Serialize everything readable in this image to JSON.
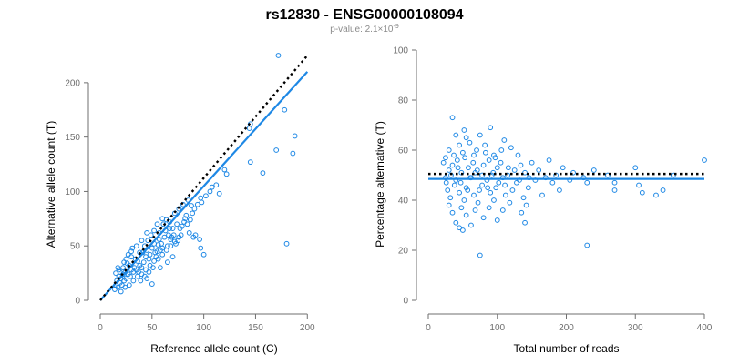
{
  "title": "rs12830 - ENSG00000108094",
  "subtitle": {
    "prefix": "p-value: 2.1×10",
    "exponent": "-9"
  },
  "colors": {
    "points": "#1e88e5",
    "fit_line": "#1e88e5",
    "reference_line": "#000000",
    "axis": "#6f6f6f"
  },
  "chart_data": [
    {
      "type": "scatter",
      "title": "",
      "xlabel": "Reference allele count (C)",
      "ylabel": "Alternative allele count (T)",
      "xlim": [
        0,
        220
      ],
      "ylim": [
        0,
        230
      ],
      "xticks": [
        0,
        50,
        100,
        150,
        200
      ],
      "yticks": [
        0,
        50,
        100,
        150,
        200
      ],
      "grid": false,
      "fit_line": {
        "x": [
          0,
          200
        ],
        "y": [
          0,
          210
        ]
      },
      "reference_line": {
        "x": [
          0,
          200
        ],
        "y": [
          0,
          225
        ],
        "style": "dotted"
      },
      "points": [
        [
          172,
          225
        ],
        [
          178,
          175
        ],
        [
          145,
          162
        ],
        [
          144,
          158
        ],
        [
          188,
          151
        ],
        [
          170,
          138
        ],
        [
          186,
          135
        ],
        [
          157,
          117
        ],
        [
          180,
          52
        ],
        [
          145,
          127
        ],
        [
          120,
          120
        ],
        [
          122,
          116
        ],
        [
          112,
          106
        ],
        [
          115,
          98
        ],
        [
          97,
          94
        ],
        [
          88,
          87
        ],
        [
          100,
          42
        ],
        [
          97,
          48
        ],
        [
          96,
          56
        ],
        [
          82,
          75
        ],
        [
          84,
          70
        ],
        [
          79,
          68
        ],
        [
          86,
          62
        ],
        [
          90,
          58
        ],
        [
          92,
          60
        ],
        [
          78,
          60
        ],
        [
          75,
          55
        ],
        [
          73,
          52
        ],
        [
          70,
          66
        ],
        [
          68,
          56
        ],
        [
          66,
          60
        ],
        [
          65,
          50
        ],
        [
          62,
          58
        ],
        [
          60,
          48
        ],
        [
          58,
          46
        ],
        [
          56,
          51
        ],
        [
          55,
          45
        ],
        [
          54,
          40
        ],
        [
          52,
          52
        ],
        [
          50,
          48
        ],
        [
          48,
          42
        ],
        [
          47,
          38
        ],
        [
          45,
          46
        ],
        [
          44,
          40
        ],
        [
          42,
          35
        ],
        [
          41,
          44
        ],
        [
          40,
          30
        ],
        [
          38,
          32
        ],
        [
          36,
          36
        ],
        [
          35,
          28
        ],
        [
          33,
          30
        ],
        [
          32,
          26
        ],
        [
          30,
          28
        ],
        [
          29,
          22
        ],
        [
          28,
          32
        ],
        [
          27,
          24
        ],
        [
          25,
          20
        ],
        [
          24,
          26
        ],
        [
          23,
          18
        ],
        [
          22,
          24
        ],
        [
          21,
          14
        ],
        [
          20,
          20
        ],
        [
          19,
          16
        ],
        [
          18,
          22
        ],
        [
          17,
          12
        ],
        [
          16,
          18
        ],
        [
          15,
          14
        ],
        [
          14,
          10
        ],
        [
          18,
          28
        ],
        [
          22,
          30
        ],
        [
          26,
          34
        ],
        [
          30,
          40
        ],
        [
          34,
          38
        ],
        [
          38,
          44
        ],
        [
          43,
          50
        ],
        [
          46,
          55
        ],
        [
          49,
          60
        ],
        [
          52,
          64
        ],
        [
          57,
          62
        ],
        [
          61,
          70
        ],
        [
          64,
          74
        ],
        [
          67,
          72
        ],
        [
          72,
          80
        ],
        [
          76,
          84
        ],
        [
          80,
          88
        ],
        [
          85,
          92
        ],
        [
          20,
          8
        ],
        [
          24,
          12
        ],
        [
          28,
          14
        ],
        [
          32,
          18
        ],
        [
          36,
          22
        ],
        [
          40,
          24
        ],
        [
          44,
          28
        ],
        [
          48,
          32
        ],
        [
          52,
          36
        ],
        [
          56,
          38
        ],
        [
          60,
          42
        ],
        [
          64,
          46
        ],
        [
          68,
          50
        ],
        [
          72,
          54
        ],
        [
          76,
          58
        ],
        [
          35,
          50
        ],
        [
          40,
          55
        ],
        [
          45,
          62
        ],
        [
          30,
          45
        ],
        [
          25,
          38
        ],
        [
          55,
          70
        ],
        [
          60,
          75
        ],
        [
          50,
          15
        ],
        [
          45,
          20
        ],
        [
          58,
          30
        ],
        [
          65,
          35
        ],
        [
          70,
          40
        ],
        [
          15,
          25
        ],
        [
          17,
          30
        ],
        [
          19,
          26
        ],
        [
          23,
          35
        ],
        [
          27,
          42
        ],
        [
          31,
          48
        ],
        [
          37,
          26
        ],
        [
          39,
          18
        ],
        [
          43,
          22
        ],
        [
          47,
          26
        ],
        [
          51,
          30
        ],
        [
          53,
          44
        ],
        [
          57,
          56
        ],
        [
          59,
          52
        ],
        [
          63,
          64
        ],
        [
          67,
          66
        ],
        [
          69,
          58
        ],
        [
          71,
          60
        ],
        [
          74,
          70
        ],
        [
          77,
          66
        ],
        [
          81,
          72
        ],
        [
          83,
          78
        ],
        [
          87,
          74
        ],
        [
          89,
          80
        ],
        [
          91,
          84
        ],
        [
          94,
          88
        ],
        [
          98,
          90
        ],
        [
          102,
          96
        ],
        [
          106,
          100
        ],
        [
          108,
          104
        ]
      ]
    },
    {
      "type": "scatter",
      "title": "",
      "xlabel": "Total number of reads",
      "ylabel": "Percentage alternative (T)",
      "xlim": [
        0,
        400
      ],
      "ylim": [
        0,
        100
      ],
      "xticks": [
        0,
        100,
        200,
        300,
        400
      ],
      "yticks": [
        0,
        20,
        40,
        60,
        80,
        100
      ],
      "grid": false,
      "fit_line": {
        "x": [
          0,
          400
        ],
        "y": [
          48.5,
          48.5
        ]
      },
      "reference_line": {
        "x": [
          0,
          400
        ],
        "y": [
          50.5,
          50.5
        ],
        "style": "dotted"
      },
      "points": [
        [
          35,
          73
        ],
        [
          52,
          68
        ],
        [
          90,
          69
        ],
        [
          40,
          66
        ],
        [
          55,
          65
        ],
        [
          75,
          66
        ],
        [
          110,
          64
        ],
        [
          45,
          62
        ],
        [
          60,
          63
        ],
        [
          82,
          62
        ],
        [
          120,
          61
        ],
        [
          30,
          60
        ],
        [
          50,
          59
        ],
        [
          70,
          60
        ],
        [
          95,
          58
        ],
        [
          130,
          58
        ],
        [
          175,
          56
        ],
        [
          25,
          57
        ],
        [
          42,
          56
        ],
        [
          65,
          55
        ],
        [
          88,
          56
        ],
        [
          105,
          55
        ],
        [
          150,
          55
        ],
        [
          35,
          54
        ],
        [
          58,
          53
        ],
        [
          80,
          54
        ],
        [
          100,
          53
        ],
        [
          125,
          52
        ],
        [
          160,
          52
        ],
        [
          195,
          53
        ],
        [
          240,
          52
        ],
        [
          300,
          53
        ],
        [
          30,
          52
        ],
        [
          48,
          51
        ],
        [
          68,
          51
        ],
        [
          92,
          50
        ],
        [
          115,
          50
        ],
        [
          140,
          51
        ],
        [
          185,
          50
        ],
        [
          210,
          51
        ],
        [
          260,
          50
        ],
        [
          355,
          50
        ],
        [
          400,
          56
        ],
        [
          25,
          49
        ],
        [
          40,
          48
        ],
        [
          62,
          49
        ],
        [
          85,
          48
        ],
        [
          108,
          49
        ],
        [
          132,
          48
        ],
        [
          170,
          49
        ],
        [
          205,
          48
        ],
        [
          225,
          49
        ],
        [
          270,
          47
        ],
        [
          305,
          46
        ],
        [
          38,
          46
        ],
        [
          55,
          45
        ],
        [
          78,
          46
        ],
        [
          98,
          45
        ],
        [
          122,
          44
        ],
        [
          145,
          45
        ],
        [
          190,
          44
        ],
        [
          230,
          47
        ],
        [
          28,
          44
        ],
        [
          45,
          43
        ],
        [
          66,
          42
        ],
        [
          90,
          43
        ],
        [
          112,
          42
        ],
        [
          138,
          41
        ],
        [
          165,
          42
        ],
        [
          270,
          44
        ],
        [
          310,
          43
        ],
        [
          330,
          42
        ],
        [
          340,
          44
        ],
        [
          32,
          41
        ],
        [
          52,
          40
        ],
        [
          72,
          39
        ],
        [
          95,
          40
        ],
        [
          118,
          39
        ],
        [
          142,
          38
        ],
        [
          30,
          38
        ],
        [
          48,
          37
        ],
        [
          68,
          36
        ],
        [
          88,
          37
        ],
        [
          108,
          36
        ],
        [
          135,
          35
        ],
        [
          35,
          35
        ],
        [
          55,
          34
        ],
        [
          80,
          33
        ],
        [
          100,
          32
        ],
        [
          140,
          31
        ],
        [
          40,
          31
        ],
        [
          62,
          30
        ],
        [
          45,
          29
        ],
        [
          50,
          28
        ],
        [
          75,
          18
        ],
        [
          230,
          22
        ],
        [
          22,
          55
        ],
        [
          26,
          47
        ],
        [
          33,
          50
        ],
        [
          37,
          58
        ],
        [
          43,
          53
        ],
        [
          47,
          47
        ],
        [
          53,
          57
        ],
        [
          57,
          44
        ],
        [
          61,
          49
        ],
        [
          66,
          58
        ],
        [
          71,
          52
        ],
        [
          74,
          44
        ],
        [
          78,
          50
        ],
        [
          83,
          59
        ],
        [
          86,
          45
        ],
        [
          94,
          51
        ],
        [
          97,
          57
        ],
        [
          102,
          47
        ],
        [
          106,
          60
        ],
        [
          111,
          46
        ],
        [
          116,
          53
        ],
        [
          128,
          47
        ],
        [
          134,
          54
        ],
        [
          146,
          49
        ],
        [
          155,
          48
        ],
        [
          180,
          47
        ]
      ]
    }
  ]
}
